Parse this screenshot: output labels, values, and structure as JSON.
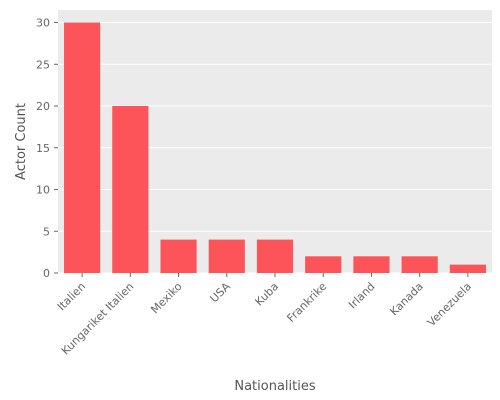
{
  "chart_data": {
    "type": "bar",
    "categories": [
      "Italien",
      "Kungariket Italien",
      "Mexiko",
      "USA",
      "Kuba",
      "Frankrike",
      "Irland",
      "Kanada",
      "Venezuela"
    ],
    "values": [
      30,
      20,
      4,
      4,
      4,
      2,
      2,
      2,
      1
    ],
    "xlabel": "Nationalities",
    "ylabel": "Actor Count",
    "ylim": [
      0,
      31.5
    ],
    "yticks": [
      0,
      5,
      10,
      15,
      20,
      25,
      30
    ],
    "grid": true,
    "bar_color": "#fc5458",
    "plot_background": "#ebebeb",
    "grid_color": "#ffffff"
  }
}
